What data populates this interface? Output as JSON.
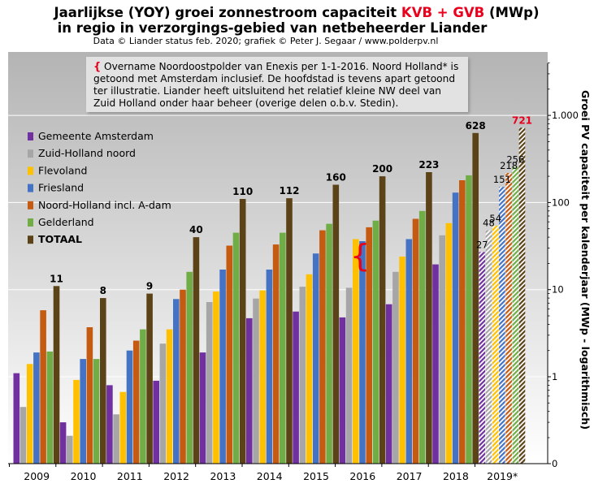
{
  "title": {
    "line1_prefix": "Jaarlijkse (YOY) groei zonnestroom capaciteit ",
    "line1_highlight": "KVB + GVB",
    "line1_suffix": " (MWp)",
    "line2": "in regio in verzorgings-gebied van netbeheerder Liander",
    "source": "Data © Liander status feb. 2020; grafiek © Peter J. Segaar / www.polderpv.nl"
  },
  "note": {
    "brace": "{",
    "lines": [
      "Overname Noordoostpolder van Enexis per 1-1-2016. Noord Holland* is",
      "getoond met Amsterdam inclusief. De hoofdstad is tevens apart getoond",
      "ter illustratie. Liander heeft uitsluitend het relatief kleine NW deel van",
      "Zuid Holland onder haar beheer (overige delen o.b.v. Stedin)."
    ]
  },
  "chart_data": {
    "type": "bar",
    "title": "Jaarlijkse (YOY) groei zonnestroom capaciteit KVB + GVB (MWp)",
    "ylabel": "Groei PV capaciteit per kalenderjaar (MWp - logarithmisch)",
    "yscale": "log",
    "ylim": [
      0.1,
      5000
    ],
    "yticks": [
      {
        "value": 0.1,
        "label": "0"
      },
      {
        "value": 1,
        "label": "1"
      },
      {
        "value": 10,
        "label": "10"
      },
      {
        "value": 100,
        "label": "100"
      },
      {
        "value": 1000,
        "label": "1.000"
      }
    ],
    "categories": [
      "2009",
      "2010",
      "2011",
      "2012",
      "2013",
      "2014",
      "2015",
      "2016",
      "2017",
      "2018",
      "2019*"
    ],
    "legend_position": "left",
    "series": [
      {
        "name": "Gemeente Amsterdam",
        "color": "#7030a0",
        "values": [
          1.1,
          0.3,
          0.8,
          0.9,
          1.9,
          4.7,
          5.6,
          4.8,
          6.8,
          19.5,
          27
        ]
      },
      {
        "name": "Zuid-Holland noord",
        "color": "#a6a6a6",
        "values": [
          0.45,
          0.21,
          0.37,
          2.4,
          7.2,
          7.9,
          10.8,
          10.5,
          16,
          42,
          48
        ]
      },
      {
        "name": "Flevoland",
        "color": "#ffc000",
        "values": [
          1.4,
          0.92,
          0.67,
          3.5,
          9.5,
          9.8,
          15,
          38,
          24,
          58,
          54
        ]
      },
      {
        "name": "Friesland",
        "color": "#4472c4",
        "values": [
          1.9,
          1.6,
          2.0,
          7.8,
          17,
          17,
          26,
          36,
          38,
          130,
          151
        ]
      },
      {
        "name": "Noord-Holland incl. A-dam",
        "color": "#c55a11",
        "values": [
          5.8,
          3.7,
          2.6,
          10,
          32,
          33,
          48,
          52,
          65,
          180,
          218
        ]
      },
      {
        "name": "Gelderland",
        "color": "#70ad47",
        "values": [
          1.95,
          1.6,
          3.5,
          16,
          45,
          45,
          57,
          62,
          80,
          205,
          256
        ]
      },
      {
        "name": "TOTAAL",
        "color": "#5c4317",
        "bold": true,
        "values": [
          11,
          8,
          9,
          40,
          110,
          112,
          160,
          200,
          223,
          628,
          721
        ]
      }
    ],
    "total_labels": [
      "11",
      "8",
      "9",
      "40",
      "110",
      "112",
      "160",
      "200",
      "223",
      "628",
      "721"
    ],
    "estimate_category": "2019*",
    "estimate_labels": [
      "27",
      "48",
      "54",
      "151",
      "218",
      "256"
    ]
  },
  "colors": {
    "panel_gradient_top": "#b4b4b4",
    "panel_gradient_bottom": "#ffffff",
    "note_background": "#e2e2e2",
    "highlight_red": "#e8001c"
  }
}
